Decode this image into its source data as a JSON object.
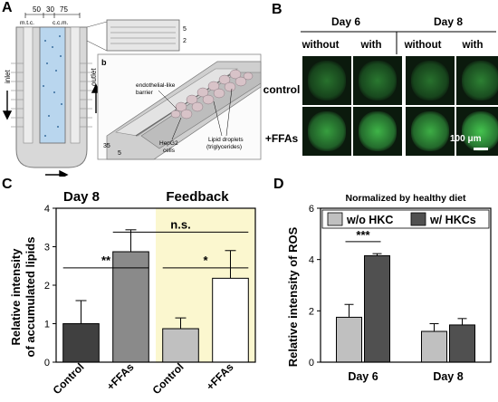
{
  "panel_labels": {
    "a": "A",
    "b": "B",
    "c": "C",
    "d": "D"
  },
  "panel_a": {
    "dims_top": [
      "50",
      "30",
      "75"
    ],
    "col_labels": [
      "m.t.c.",
      "c.c.m."
    ],
    "inlet": "inlet",
    "outlet": "outlet",
    "inset_dims": [
      "5",
      "2"
    ],
    "sub_label": "b",
    "barrier_label": [
      "endothelial-like",
      "barrier"
    ],
    "hepg2_label": [
      "HepG2",
      "cells"
    ],
    "lipid_label": [
      "Lipid droplets",
      "(triglycerides)"
    ],
    "bottom_dims": [
      "35",
      "5"
    ]
  },
  "panel_b": {
    "days": [
      "Day 6",
      "Day 8"
    ],
    "conditions": [
      "without",
      "with",
      "without",
      "with"
    ],
    "rows": [
      "control",
      "+FFAs"
    ],
    "scalebar": "100 μm",
    "fluorescence": [
      [
        0.35,
        0.4,
        0.35,
        0.45
      ],
      [
        0.65,
        0.8,
        0.75,
        0.9
      ]
    ]
  },
  "chart_data": [
    {
      "type": "bar",
      "title_left": "Day 8",
      "title_right": "Feedback",
      "ylabel": [
        "Relative intensity",
        "of accumulated lipids"
      ],
      "categories": [
        "Control",
        "+FFAs",
        "Control",
        "+FFAs"
      ],
      "values": [
        1.0,
        2.87,
        0.87,
        2.18
      ],
      "errors": [
        0.6,
        0.57,
        0.28,
        0.72
      ],
      "colors": [
        "#404040",
        "#8a8a8a",
        "#c0c0c0",
        "#ffffff"
      ],
      "highlight_color": "#fbf7cf",
      "ylim": [
        0,
        4
      ],
      "yticks": [
        0,
        1,
        2,
        3,
        4
      ],
      "significance": [
        {
          "label": "**",
          "from": 0,
          "to": 1,
          "y": 2.45
        },
        {
          "label": "n.s.",
          "from": 1,
          "to": 3,
          "y": 3.38
        },
        {
          "label": "*",
          "from": 2,
          "to": 3,
          "y": 2.45
        }
      ]
    },
    {
      "type": "bar",
      "title": "Normalized by healthy diet",
      "ylabel": "Relative intensity of ROS",
      "groups": [
        "Day 6",
        "Day 8"
      ],
      "series": [
        {
          "name": "w/o HKC",
          "color": "#c0c0c0",
          "values": [
            1.75,
            1.2
          ],
          "errors": [
            0.5,
            0.3
          ]
        },
        {
          "name": "w/ HKCs",
          "color": "#505050",
          "values": [
            4.15,
            1.45
          ],
          "errors": [
            0.08,
            0.25
          ]
        }
      ],
      "ylim": [
        0,
        6
      ],
      "yticks": [
        0,
        2,
        4,
        6
      ],
      "significance": [
        {
          "label": "***",
          "group": 0,
          "y": 4.7
        }
      ]
    }
  ]
}
